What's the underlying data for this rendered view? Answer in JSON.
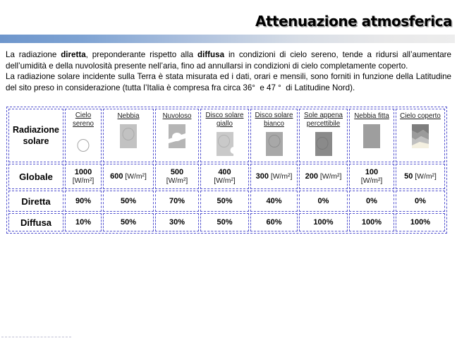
{
  "slide": {
    "title": "Attenuazione atmosferica",
    "paragraphs": [
      {
        "segments": [
          {
            "t": "La radiazione ",
            "b": false
          },
          {
            "t": "diretta",
            "b": true
          },
          {
            "t": ", preponderante rispetto alla ",
            "b": false
          },
          {
            "t": "diffusa",
            "b": true
          },
          {
            "t": " in condizioni di cielo sereno, tende a ridursi all’aumentare dell’umidità e della nuvolosità presente nell’aria, fino ad annullarsi in condizioni di cielo completamente coperto.",
            "b": false
          }
        ]
      },
      {
        "segments": [
          {
            "t": "La radiazione solare incidente sulla Terra è stata misurata ed i dati, orari e mensili, sono forniti in funzione della Latitudine del sito preso in considerazione (tutta l’Italia è compresa fra circa 36°  e 47 °  di Latitudine Nord).",
            "b": false
          }
        ]
      }
    ]
  },
  "table": {
    "corner_label": "Radiazione solare",
    "row_labels": {
      "globale": "Globale",
      "diretta": "Diretta",
      "diffusa": "Diffusa"
    },
    "columns": [
      {
        "label": "Cielo sereno",
        "icon": "sun-clear-icon",
        "globale": {
          "value": "1000",
          "unit": "[W/m²]",
          "two_line": true
        },
        "diretta": "90%",
        "diffusa": "10%"
      },
      {
        "label": "Nebbia",
        "icon": "fog-icon",
        "globale": {
          "value": "600",
          "unit": "[W/m²]",
          "two_line": false
        },
        "diretta": "50%",
        "diffusa": "50%"
      },
      {
        "label": "Nuvoloso",
        "icon": "cloudy-icon",
        "globale": {
          "value": "500",
          "unit": "[W/m²]",
          "two_line": true
        },
        "diretta": "70%",
        "diffusa": "30%"
      },
      {
        "label": "Disco solare giallo",
        "icon": "yellow-sun-disc-icon",
        "globale": {
          "value": "400",
          "unit": "[W/m²]",
          "two_line": true
        },
        "diretta": "50%",
        "diffusa": "50%"
      },
      {
        "label": "Disco solare bianco",
        "icon": "white-sun-disc-icon",
        "globale": {
          "value": "300",
          "unit": "[W/m²]",
          "two_line": false
        },
        "diretta": "40%",
        "diffusa": "60%"
      },
      {
        "label": "Sole appena percettibile",
        "icon": "faint-sun-icon",
        "globale": {
          "value": "200",
          "unit": "[W/m²]",
          "two_line": false
        },
        "diretta": "0%",
        "diffusa": "100%"
      },
      {
        "label": "Nebbia fitta",
        "icon": "dense-fog-icon",
        "globale": {
          "value": "100",
          "unit": "[W/m²]",
          "two_line": true
        },
        "diretta": "0%",
        "diffusa": "100%"
      },
      {
        "label": "Cielo coperto",
        "icon": "overcast-sky-icon",
        "globale": {
          "value": "50",
          "unit": "[W/m²]",
          "two_line": false
        },
        "diretta": "0%",
        "diffusa": "100%"
      }
    ]
  },
  "colors": {
    "table_border": "#5353cf",
    "bar_blue": "#6e96cc",
    "bar_gray": "#ededed",
    "title_shadow": "#a9a9a9",
    "icon_light_gray": "#c2c2c2",
    "icon_mid_gray": "#a8a8a8",
    "icon_dark_gray": "#8a8a8a",
    "icon_cream": "#f4f0e1"
  }
}
